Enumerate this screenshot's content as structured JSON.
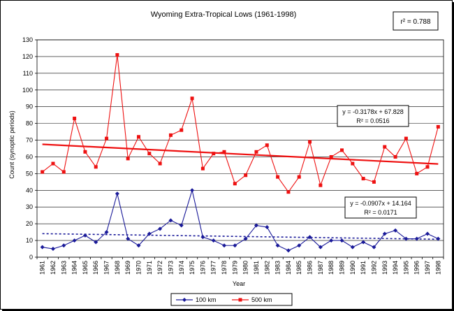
{
  "chart_data": {
    "type": "line",
    "title": "Wyoming Extra-Tropical Lows (1961-1998)",
    "xlabel": "Year",
    "ylabel": "Count (synoptic periods)",
    "ylim": [
      0,
      130
    ],
    "yticks": [
      0,
      10,
      20,
      30,
      40,
      50,
      60,
      70,
      80,
      90,
      100,
      110,
      120,
      130
    ],
    "grid": true,
    "legend_position": "bottom-center",
    "x": [
      "1961",
      "1962",
      "1963",
      "1964",
      "1965",
      "1966",
      "1967",
      "1968",
      "1969",
      "1970",
      "1971",
      "1972",
      "1973",
      "1974",
      "1975",
      "1976",
      "1977",
      "1978",
      "1979",
      "1980",
      "1981",
      "1982",
      "1983",
      "1984",
      "1985",
      "1986",
      "1987",
      "1988",
      "1989",
      "1990",
      "1991",
      "1992",
      "1993",
      "1994",
      "1995",
      "1996",
      "1997",
      "1998"
    ],
    "series": [
      {
        "name": "100 km",
        "color": "#1a1a99",
        "marker": "diamond",
        "values": [
          6,
          5,
          7,
          10,
          13,
          9,
          15,
          38,
          11,
          7,
          14,
          17,
          22,
          19,
          40,
          12,
          10,
          7,
          7,
          11,
          19,
          18,
          7,
          4,
          7,
          12,
          6,
          10,
          10,
          6,
          9,
          6,
          14,
          16,
          11,
          11,
          14,
          11
        ],
        "trend": {
          "label": "y = -0.0907x + 14.164",
          "r2_label": "R² = 0.0171",
          "slope": -0.0907,
          "intercept": 14.164
        }
      },
      {
        "name": "500 km",
        "color": "#ee1111",
        "marker": "square",
        "values": [
          51,
          56,
          51,
          83,
          63,
          54,
          71,
          121,
          59,
          72,
          62,
          56,
          73,
          76,
          95,
          53,
          62,
          63,
          44,
          49,
          63,
          67,
          48,
          39,
          48,
          69,
          43,
          60,
          64,
          56,
          47,
          45,
          66,
          60,
          71,
          50,
          54,
          78
        ],
        "trend": {
          "label": "y = -0.3178x + 67.828",
          "r2_label": "R² = 0.0516",
          "slope": -0.3178,
          "intercept": 67.828
        }
      }
    ],
    "correlation_label": "r² = 0.788"
  }
}
